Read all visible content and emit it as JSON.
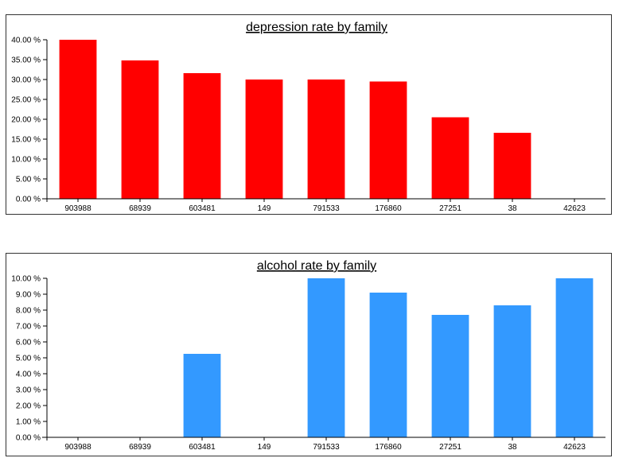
{
  "chart_data": [
    {
      "type": "bar",
      "title": "depression rate by family",
      "categories": [
        "903988",
        "68939",
        "603481",
        "149",
        "791533",
        "176860",
        "27251",
        "38",
        "42623"
      ],
      "values": [
        40.0,
        34.8,
        31.6,
        30.0,
        30.0,
        29.5,
        20.5,
        16.6,
        0
      ],
      "ylim": [
        0,
        40
      ],
      "yticks": [
        "0.00 %",
        "5.00 %",
        "10.00 %",
        "15.00 %",
        "20.00 %",
        "25.00 %",
        "30.00 %",
        "35.00 %",
        "40.00 %"
      ],
      "ytick_values": [
        0,
        5,
        10,
        15,
        20,
        25,
        30,
        35,
        40
      ],
      "color": "#ff0000",
      "xlabel": "",
      "ylabel": "",
      "grid": false
    },
    {
      "type": "bar",
      "title": "alcohol rate by family",
      "categories": [
        "903988",
        "68939",
        "603481",
        "149",
        "791533",
        "176860",
        "27251",
        "38",
        "42623"
      ],
      "values": [
        0,
        0,
        5.25,
        0,
        10.0,
        9.1,
        7.7,
        8.3,
        10.0
      ],
      "ylim": [
        0,
        10
      ],
      "yticks": [
        "0.00 %",
        "1.00 %",
        "2.00 %",
        "3.00 %",
        "4.00 %",
        "5.00 %",
        "6.00 %",
        "7.00 %",
        "8.00 %",
        "9.00 %",
        "10.00 %"
      ],
      "ytick_values": [
        0,
        1,
        2,
        3,
        4,
        5,
        6,
        7,
        8,
        9,
        10
      ],
      "color": "#3399ff",
      "xlabel": "",
      "ylabel": "",
      "grid": false
    }
  ]
}
